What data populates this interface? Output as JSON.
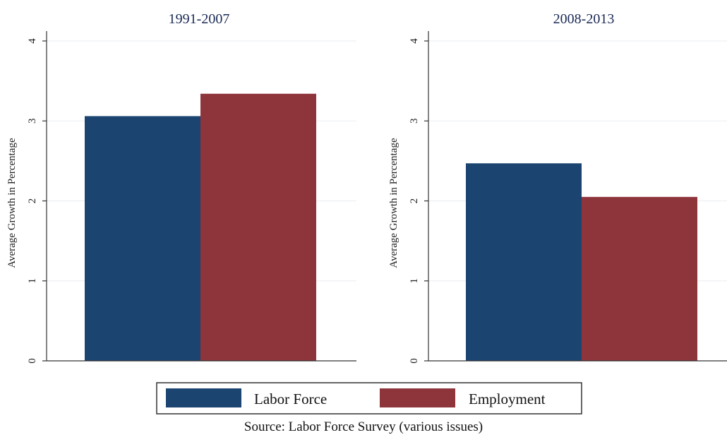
{
  "chart_data": [
    {
      "type": "bar",
      "title": "1991-2007",
      "ylabel": "Average Growth in Percentage",
      "ylim": [
        0,
        4
      ],
      "yticks": [
        0,
        1,
        2,
        3,
        4
      ],
      "grid": true,
      "series": [
        {
          "name": "Labor Force",
          "values": [
            3.06
          ],
          "color": "#1b4470"
        },
        {
          "name": "Employment",
          "values": [
            3.34
          ],
          "color": "#8e353b"
        }
      ]
    },
    {
      "type": "bar",
      "title": "2008-2013",
      "ylabel": "Average Growth in Percentage",
      "ylim": [
        0,
        4
      ],
      "yticks": [
        0,
        1,
        2,
        3,
        4
      ],
      "grid": true,
      "series": [
        {
          "name": "Labor Force",
          "values": [
            2.47
          ],
          "color": "#1b4470"
        },
        {
          "name": "Employment",
          "values": [
            2.05
          ],
          "color": "#8e353b"
        }
      ]
    }
  ],
  "legend": {
    "placement": "bottom",
    "items": [
      {
        "label": "Labor Force",
        "color": "#1b4470"
      },
      {
        "label": "Employment",
        "color": "#8e353b"
      }
    ]
  },
  "note": "Source: Labor Force Survey (various issues)"
}
